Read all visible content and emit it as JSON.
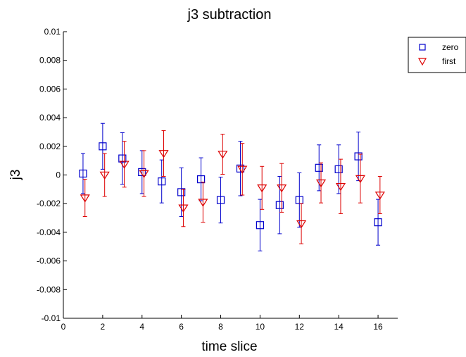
{
  "chart_data": {
    "type": "scatter",
    "title": "j3 subtraction",
    "xlabel": "time slice",
    "ylabel": "j3",
    "xlim": [
      0,
      17
    ],
    "ylim": [
      -0.01,
      0.01
    ],
    "xticks": [
      0,
      2,
      4,
      6,
      8,
      10,
      12,
      14,
      16
    ],
    "yticks": [
      -0.01,
      -0.008,
      -0.006,
      -0.004,
      -0.002,
      0,
      0.002,
      0.004,
      0.006,
      0.008,
      0.01
    ],
    "yticklabels": [
      "-0.01",
      "-0.008",
      "-0.006",
      "-0.004",
      "-0.002",
      "0",
      "0.002",
      "0.004",
      "0.006",
      "0.008",
      "0.01"
    ],
    "grid": false,
    "legend_position": "top-right",
    "series": [
      {
        "name": "zero",
        "marker": "square",
        "color": "#0000cc",
        "x": [
          1,
          2,
          3,
          4,
          5,
          6,
          7,
          8,
          9,
          10,
          11,
          12,
          13,
          14,
          15,
          16
        ],
        "y": [
          0.0001,
          0.002,
          0.00115,
          0.0002,
          -0.00045,
          -0.0012,
          -0.0003,
          -0.00175,
          0.00045,
          -0.0035,
          -0.0021,
          -0.00175,
          0.0005,
          0.0004,
          0.0013,
          -0.0033
        ],
        "err": [
          0.0014,
          0.0016,
          0.0018,
          0.0015,
          0.0015,
          0.0017,
          0.0015,
          0.0016,
          0.0019,
          0.0018,
          0.002,
          0.0019,
          0.0016,
          0.0017,
          0.0017,
          0.0016
        ]
      },
      {
        "name": "first",
        "marker": "triangle-down",
        "color": "#dd0000",
        "x": [
          1.1,
          2.1,
          3.1,
          4.1,
          5.1,
          6.1,
          7.1,
          8.1,
          9.1,
          10.1,
          11.1,
          12.1,
          13.1,
          14.1,
          15.1,
          16.1
        ],
        "y": [
          -0.0016,
          0.0,
          0.00075,
          0.0001,
          0.0015,
          -0.0023,
          -0.0019,
          0.00145,
          0.0004,
          -0.0009,
          -0.0009,
          -0.0034,
          -0.00055,
          -0.0008,
          -0.00025,
          -0.0014
        ],
        "err": [
          0.0013,
          0.0015,
          0.0016,
          0.0016,
          0.0016,
          0.0013,
          0.0014,
          0.0014,
          0.0018,
          0.0015,
          0.0017,
          0.0014,
          0.0014,
          0.0019,
          0.0017,
          0.0013
        ]
      }
    ]
  }
}
